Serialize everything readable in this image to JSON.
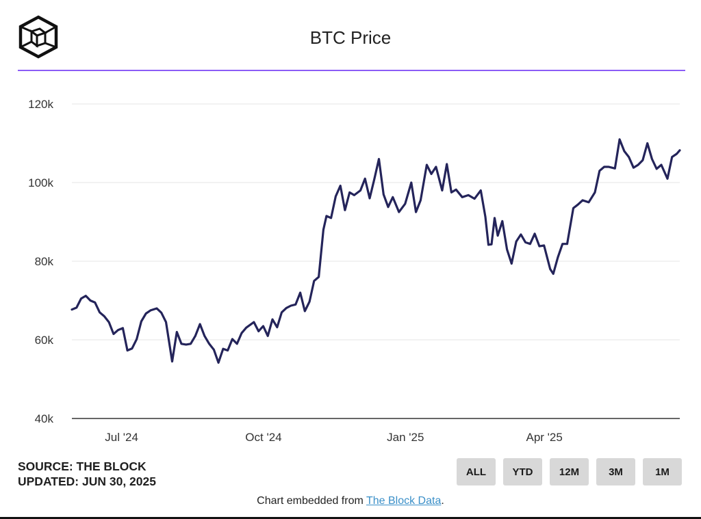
{
  "header": {
    "title": "BTC Price",
    "logo_icon": "the-block-cube-icon"
  },
  "colors": {
    "accent": "#8b5cf6",
    "line": "#24245a",
    "grid": "#e6e6e6",
    "button_bg": "#d8d8d8",
    "link": "#3a8fc8"
  },
  "chart_data": {
    "type": "line",
    "title": "BTC Price",
    "xlabel": "",
    "ylabel": "",
    "x_range": [
      "2024-06-01",
      "2025-06-30"
    ],
    "ylim": [
      40000,
      120000
    ],
    "yticks": [
      40000,
      60000,
      80000,
      100000,
      120000
    ],
    "ytick_labels": [
      "40k",
      "60k",
      "80k",
      "100k",
      "120k"
    ],
    "xticks": [
      "2024-07-01",
      "2024-10-01",
      "2025-01-01",
      "2025-04-01"
    ],
    "xtick_labels": [
      "Jul '24",
      "Oct '24",
      "Jan '25",
      "Apr '25"
    ],
    "grid": true,
    "legend": "none",
    "series": [
      {
        "name": "",
        "x": [
          "2024-06-01",
          "2024-06-04",
          "2024-06-07",
          "2024-06-10",
          "2024-06-13",
          "2024-06-16",
          "2024-06-19",
          "2024-06-22",
          "2024-06-25",
          "2024-06-28",
          "2024-07-01",
          "2024-07-04",
          "2024-07-07",
          "2024-07-10",
          "2024-07-13",
          "2024-07-16",
          "2024-07-19",
          "2024-07-22",
          "2024-07-26",
          "2024-07-29",
          "2024-08-01",
          "2024-08-05",
          "2024-08-08",
          "2024-08-11",
          "2024-08-14",
          "2024-08-17",
          "2024-08-20",
          "2024-08-23",
          "2024-08-26",
          "2024-08-29",
          "2024-09-01",
          "2024-09-04",
          "2024-09-07",
          "2024-09-10",
          "2024-09-13",
          "2024-09-16",
          "2024-09-19",
          "2024-09-22",
          "2024-09-27",
          "2024-09-30",
          "2024-10-03",
          "2024-10-06",
          "2024-10-09",
          "2024-10-12",
          "2024-10-15",
          "2024-10-18",
          "2024-10-21",
          "2024-10-24",
          "2024-10-27",
          "2024-10-30",
          "2024-11-02",
          "2024-11-05",
          "2024-11-08",
          "2024-11-11",
          "2024-11-13",
          "2024-11-16",
          "2024-11-19",
          "2024-11-22",
          "2024-11-25",
          "2024-11-28",
          "2024-12-01",
          "2024-12-05",
          "2024-12-08",
          "2024-12-11",
          "2024-12-14",
          "2024-12-17",
          "2024-12-20",
          "2024-12-23",
          "2024-12-26",
          "2024-12-30",
          "2025-01-03",
          "2025-01-07",
          "2025-01-10",
          "2025-01-13",
          "2025-01-17",
          "2025-01-20",
          "2025-01-23",
          "2025-01-27",
          "2025-01-30",
          "2025-02-02",
          "2025-02-05",
          "2025-02-09",
          "2025-02-13",
          "2025-02-17",
          "2025-02-21",
          "2025-02-24",
          "2025-02-26",
          "2025-02-28",
          "2025-03-02",
          "2025-03-04",
          "2025-03-07",
          "2025-03-10",
          "2025-03-13",
          "2025-03-16",
          "2025-03-19",
          "2025-03-22",
          "2025-03-25",
          "2025-03-28",
          "2025-03-31",
          "2025-04-03",
          "2025-04-07",
          "2025-04-09",
          "2025-04-12",
          "2025-04-15",
          "2025-04-18",
          "2025-04-22",
          "2025-04-25",
          "2025-04-28",
          "2025-05-02",
          "2025-05-06",
          "2025-05-09",
          "2025-05-12",
          "2025-05-15",
          "2025-05-19",
          "2025-05-22",
          "2025-05-25",
          "2025-05-28",
          "2025-05-31",
          "2025-06-03",
          "2025-06-06",
          "2025-06-09",
          "2025-06-12",
          "2025-06-15",
          "2025-06-18",
          "2025-06-22",
          "2025-06-25",
          "2025-06-28",
          "2025-06-30"
        ],
        "values": [
          67700,
          68200,
          70500,
          71200,
          70000,
          69500,
          67000,
          66000,
          64500,
          61500,
          62500,
          63000,
          57300,
          57800,
          60200,
          64700,
          66700,
          67500,
          68000,
          66900,
          64500,
          54500,
          62000,
          59000,
          58800,
          59000,
          61000,
          64000,
          61000,
          59000,
          57500,
          54200,
          57700,
          57300,
          60200,
          59000,
          61700,
          63100,
          64500,
          62200,
          63500,
          61000,
          65200,
          63200,
          67000,
          68100,
          68700,
          69000,
          72000,
          67300,
          69700,
          75000,
          76000,
          88000,
          91500,
          91000,
          96500,
          99200,
          93000,
          97500,
          96800,
          98000,
          101000,
          96000,
          100800,
          106000,
          97000,
          93800,
          96300,
          92500,
          94600,
          100000,
          92500,
          95500,
          104500,
          102200,
          104000,
          98000,
          104700,
          97500,
          98200,
          96300,
          96800,
          95900,
          98000,
          91300,
          84200,
          84300,
          91000,
          86500,
          90200,
          83000,
          79400,
          85000,
          86800,
          84800,
          84400,
          87000,
          83800,
          84000,
          78000,
          76800,
          81000,
          84400,
          84400,
          93500,
          94400,
          95500,
          95000,
          97500,
          103000,
          104000,
          104000,
          103600,
          111000,
          108000,
          106500,
          103800,
          104500,
          105700,
          110000,
          106000,
          103500,
          104500,
          101000,
          106500,
          107300,
          108200
        ]
      }
    ]
  },
  "source": {
    "line1": "SOURCE: THE BLOCK",
    "line2": "UPDATED: JUN 30, 2025"
  },
  "range_buttons": [
    "ALL",
    "YTD",
    "12M",
    "3M",
    "1M"
  ],
  "footer": {
    "prefix": "Chart embedded from ",
    "link_text": "The Block Data",
    "suffix": "."
  }
}
